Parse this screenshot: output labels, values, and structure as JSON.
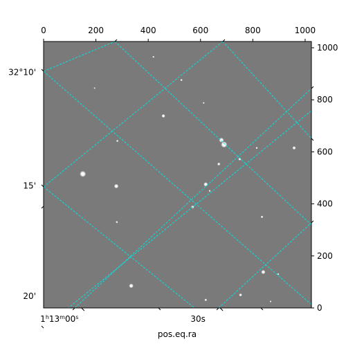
{
  "chart_data": {
    "type": "image",
    "title": "",
    "xlabel": "pos.eq.ra",
    "ylabel": "",
    "pixel_x": {
      "range": [
        0,
        1024
      ],
      "ticks": [
        0,
        200,
        400,
        600,
        800,
        1000
      ],
      "labels": [
        "0",
        "200",
        "400",
        "600",
        "800",
        "1000"
      ]
    },
    "pixel_y": {
      "range": [
        0,
        1024
      ],
      "ticks": [
        0,
        200,
        400,
        600,
        800,
        1000
      ],
      "labels": [
        "0",
        "200",
        "400",
        "600",
        "800",
        "1000"
      ]
    },
    "ra_ticks": [
      {
        "label_html": "1<tspan baseline-shift='super' font-size='8'>h</tspan>13<tspan baseline-shift='super' font-size='8'>m</tspan>00<tspan baseline-shift='super' font-size='8'>s</tspan>",
        "label_text": "1h13m00s",
        "x": 145
      },
      {
        "label_text": "30s",
        "x": 675
      }
    ],
    "dec_ticks": [
      {
        "label": "32°10'",
        "y": 905
      },
      {
        "label": "15'",
        "y": 470
      },
      {
        "label": "20'",
        "y": 45
      }
    ],
    "grid": true,
    "grid_color": "#00e5e5",
    "background_color": "#7a7a7a",
    "stars": [
      [
        150,
        515,
        4.5
      ],
      [
        278,
        468,
        3.2
      ],
      [
        620,
        475,
        3.0
      ],
      [
        680,
        645,
        3.5
      ],
      [
        690,
        628,
        4.5
      ],
      [
        458,
        738,
        2.6
      ],
      [
        670,
        553,
        2.2
      ],
      [
        750,
        572,
        2.0
      ],
      [
        958,
        615,
        2.5
      ],
      [
        570,
        388,
        2.2
      ],
      [
        835,
        350,
        1.8
      ],
      [
        335,
        85,
        3.2
      ],
      [
        840,
        138,
        3.0
      ],
      [
        753,
        50,
        2.2
      ],
      [
        620,
        31,
        1.8
      ],
      [
        280,
        330,
        1.6
      ],
      [
        420,
        965,
        1.4
      ],
      [
        527,
        876,
        1.6
      ],
      [
        282,
        642,
        1.6
      ],
      [
        635,
        450,
        1.4
      ],
      [
        815,
        615,
        1.5
      ],
      [
        897,
        130,
        1.4
      ],
      [
        868,
        25,
        1.3
      ],
      [
        195,
        845,
        1.2
      ],
      [
        612,
        788,
        1.3
      ]
    ]
  }
}
